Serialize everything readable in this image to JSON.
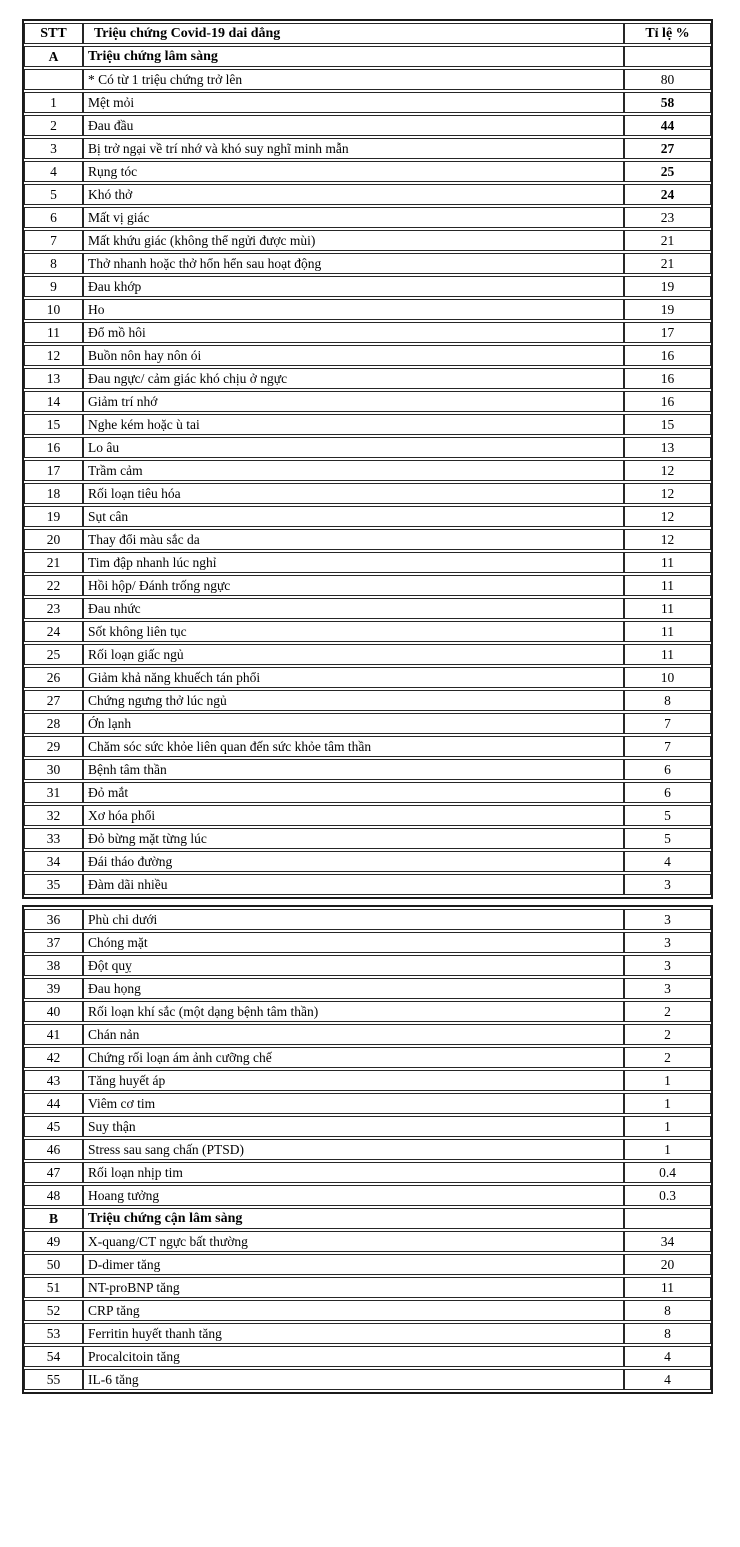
{
  "columns": {
    "stt": "STT",
    "symptom": "Triệu chứng Covid-19 dai dẳng",
    "rate": "Tỉ lệ %"
  },
  "tables": [
    {
      "rows": [
        {
          "type": "section",
          "stt": "A",
          "label": "Triệu chứng lâm sàng",
          "value": ""
        },
        {
          "type": "data",
          "stt": "",
          "label": "* Có từ 1 triệu chứng trở lên",
          "value": "80",
          "bold_value": false
        },
        {
          "type": "data",
          "stt": "1",
          "label": "Mệt mỏi",
          "value": "58",
          "bold_value": true
        },
        {
          "type": "data",
          "stt": "2",
          "label": "Đau đầu",
          "value": "44",
          "bold_value": true
        },
        {
          "type": "data",
          "stt": "3",
          "label": "Bị trở ngại về trí nhớ và khó suy nghĩ minh mẫn",
          "value": "27",
          "bold_value": true
        },
        {
          "type": "data",
          "stt": "4",
          "label": "Rụng tóc",
          "value": "25",
          "bold_value": true
        },
        {
          "type": "data",
          "stt": "5",
          "label": "Khó thở",
          "value": "24",
          "bold_value": true
        },
        {
          "type": "data",
          "stt": "6",
          "label": "Mất vị giác",
          "value": "23",
          "bold_value": false
        },
        {
          "type": "data",
          "stt": "7",
          "label": "Mất khứu giác (không thể ngửi được mùi)",
          "value": "21",
          "bold_value": false
        },
        {
          "type": "data",
          "stt": "8",
          "label": "Thở nhanh hoặc thở hổn hển sau hoạt động",
          "value": "21",
          "bold_value": false
        },
        {
          "type": "data",
          "stt": "9",
          "label": "Đau khớp",
          "value": "19",
          "bold_value": false
        },
        {
          "type": "data",
          "stt": "10",
          "label": "Ho",
          "value": "19",
          "bold_value": false
        },
        {
          "type": "data",
          "stt": "11",
          "label": "Đổ mồ hôi",
          "value": "17",
          "bold_value": false
        },
        {
          "type": "data",
          "stt": "12",
          "label": "Buồn nôn hay nôn ói",
          "value": "16",
          "bold_value": false
        },
        {
          "type": "data",
          "stt": "13",
          "label": "Đau ngực/ cảm giác khó chịu ở ngực",
          "value": "16",
          "bold_value": false
        },
        {
          "type": "data",
          "stt": "14",
          "label": "Giảm trí nhớ",
          "value": "16",
          "bold_value": false
        },
        {
          "type": "data",
          "stt": "15",
          "label": "Nghe kém hoặc ù tai",
          "value": "15",
          "bold_value": false
        },
        {
          "type": "data",
          "stt": "16",
          "label": "Lo âu",
          "value": "13",
          "bold_value": false
        },
        {
          "type": "data",
          "stt": "17",
          "label": "Trầm cảm",
          "value": "12",
          "bold_value": false
        },
        {
          "type": "data",
          "stt": "18",
          "label": "Rối loạn tiêu hóa",
          "value": "12",
          "bold_value": false
        },
        {
          "type": "data",
          "stt": "19",
          "label": "Sụt cân",
          "value": "12",
          "bold_value": false
        },
        {
          "type": "data",
          "stt": "20",
          "label": "Thay đổi màu sắc da",
          "value": "12",
          "bold_value": false
        },
        {
          "type": "data",
          "stt": "21",
          "label": "Tim đập nhanh lúc nghỉ",
          "value": "11",
          "bold_value": false
        },
        {
          "type": "data",
          "stt": "22",
          "label": "Hồi hộp/ Đánh trống ngực",
          "value": "11",
          "bold_value": false
        },
        {
          "type": "data",
          "stt": "23",
          "label": "Đau nhức",
          "value": "11",
          "bold_value": false
        },
        {
          "type": "data",
          "stt": "24",
          "label": "Sốt không liên tục",
          "value": "11",
          "bold_value": false
        },
        {
          "type": "data",
          "stt": "25",
          "label": "Rối loạn giấc ngủ",
          "value": "11",
          "bold_value": false
        },
        {
          "type": "data",
          "stt": "26",
          "label": "Giảm khả năng khuếch tán phổi",
          "value": "10",
          "bold_value": false
        },
        {
          "type": "data",
          "stt": "27",
          "label": "Chứng ngưng thở lúc ngủ",
          "value": "8",
          "bold_value": false
        },
        {
          "type": "data",
          "stt": "28",
          "label": "Ớn lạnh",
          "value": "7",
          "bold_value": false
        },
        {
          "type": "data",
          "stt": "29",
          "label": "Chăm sóc sức khỏe liên quan đến sức khỏe tâm thần",
          "value": "7",
          "bold_value": false
        },
        {
          "type": "data",
          "stt": "30",
          "label": "Bệnh tâm thần",
          "value": "6",
          "bold_value": false
        },
        {
          "type": "data",
          "stt": "31",
          "label": "Đỏ mắt",
          "value": "6",
          "bold_value": false
        },
        {
          "type": "data",
          "stt": "32",
          "label": "Xơ hóa phổi",
          "value": "5",
          "bold_value": false
        },
        {
          "type": "data",
          "stt": "33",
          "label": "Đỏ bừng mặt từng lúc",
          "value": "5",
          "bold_value": false
        },
        {
          "type": "data",
          "stt": "34",
          "label": "Đái tháo đường",
          "value": "4",
          "bold_value": false
        },
        {
          "type": "data",
          "stt": "35",
          "label": "Đàm dãi nhiều",
          "value": "3",
          "bold_value": false
        }
      ]
    },
    {
      "rows": [
        {
          "type": "data",
          "stt": "36",
          "label": "Phù chi dưới",
          "value": "3",
          "bold_value": false
        },
        {
          "type": "data",
          "stt": "37",
          "label": "Chóng mặt",
          "value": "3",
          "bold_value": false
        },
        {
          "type": "data",
          "stt": "38",
          "label": "Đột quỵ",
          "value": "3",
          "bold_value": false
        },
        {
          "type": "data",
          "stt": "39",
          "label": "Đau họng",
          "value": "3",
          "bold_value": false
        },
        {
          "type": "data",
          "stt": "40",
          "label": "Rối loạn khí sắc (một dạng bệnh tâm thần)",
          "value": "2",
          "bold_value": false
        },
        {
          "type": "data",
          "stt": "41",
          "label": "Chán nản",
          "value": "2",
          "bold_value": false
        },
        {
          "type": "data",
          "stt": "42",
          "label": "Chứng rối loạn ám ảnh cưỡng chế",
          "value": "2",
          "bold_value": false
        },
        {
          "type": "data",
          "stt": "43",
          "label": "Tăng huyết áp",
          "value": "1",
          "bold_value": false
        },
        {
          "type": "data",
          "stt": "44",
          "label": "Viêm cơ tim",
          "value": "1",
          "bold_value": false
        },
        {
          "type": "data",
          "stt": "45",
          "label": "Suy thận",
          "value": "1",
          "bold_value": false
        },
        {
          "type": "data",
          "stt": "46",
          "label": "Stress sau sang chấn (PTSD)",
          "value": "1",
          "bold_value": false
        },
        {
          "type": "data",
          "stt": "47",
          "label": "Rối loạn nhịp tim",
          "value": "0.4",
          "bold_value": false
        },
        {
          "type": "data",
          "stt": "48",
          "label": "Hoang tưởng",
          "value": "0.3",
          "bold_value": false
        },
        {
          "type": "section",
          "stt": "B",
          "label": "Triệu chứng cận lâm sàng",
          "value": ""
        },
        {
          "type": "data",
          "stt": "49",
          "label": "X-quang/CT ngực bất thường",
          "value": "34",
          "bold_value": false
        },
        {
          "type": "data",
          "stt": "50",
          "label": "D-dimer tăng",
          "value": "20",
          "bold_value": false
        },
        {
          "type": "data",
          "stt": "51",
          "label": "NT-proBNP tăng",
          "value": "11",
          "bold_value": false
        },
        {
          "type": "data",
          "stt": "52",
          "label": "CRP tăng",
          "value": "8",
          "bold_value": false
        },
        {
          "type": "data",
          "stt": "53",
          "label": "Ferritin huyết thanh tăng",
          "value": "8",
          "bold_value": false
        },
        {
          "type": "data",
          "stt": "54",
          "label": "Procalcitoin tăng",
          "value": "4",
          "bold_value": false
        },
        {
          "type": "data",
          "stt": "55",
          "label": "IL-6 tăng",
          "value": "4",
          "bold_value": false
        }
      ]
    }
  ]
}
